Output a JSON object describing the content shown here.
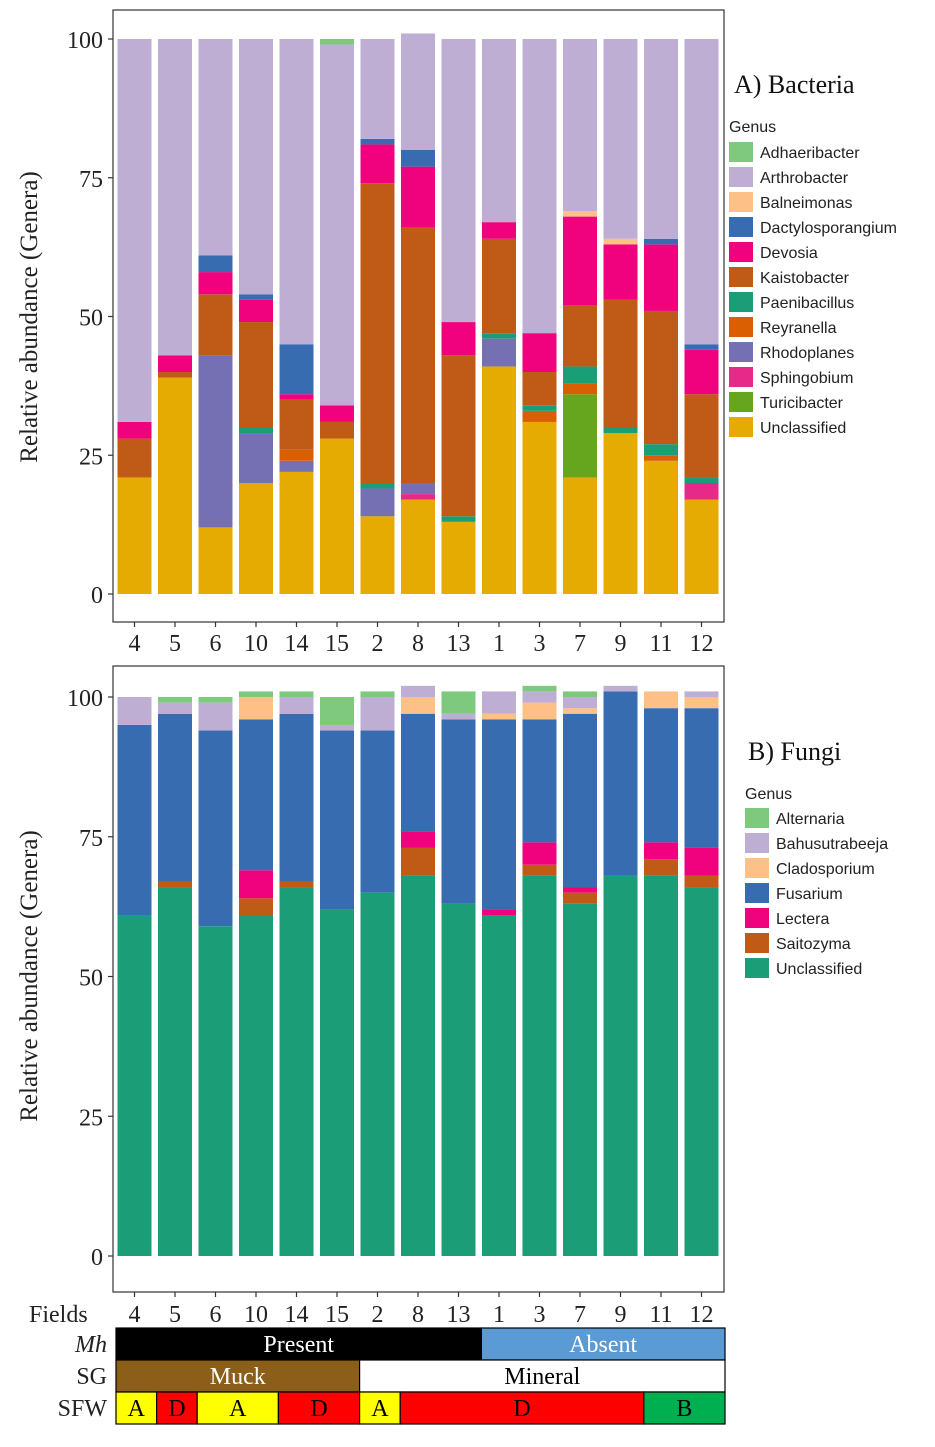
{
  "chart_data": [
    {
      "id": "bacteria",
      "type": "bar",
      "stacked": true,
      "title": "A) Bacteria",
      "xlabel": "",
      "ylabel": "Relative abundance (Genera)",
      "ylim": [
        0,
        100
      ],
      "yticks": [
        0,
        25,
        50,
        75,
        100
      ],
      "grid": false,
      "legend_title": "Genus",
      "legend_position": "right",
      "categories": [
        "4",
        "5",
        "6",
        "10",
        "14",
        "15",
        "2",
        "8",
        "13",
        "1",
        "3",
        "7",
        "9",
        "11",
        "12"
      ],
      "series": [
        {
          "name": "Unclassified",
          "color": "#E6AB02",
          "values": [
            21,
            39,
            12,
            20,
            22,
            28,
            14,
            17,
            13,
            41,
            31,
            21,
            29,
            24,
            17
          ]
        },
        {
          "name": "Turicibacter",
          "color": "#66A61E",
          "values": [
            0,
            0,
            0,
            0,
            0,
            0,
            0,
            0,
            0,
            0,
            0,
            15,
            0,
            0,
            0
          ]
        },
        {
          "name": "Sphingobium",
          "color": "#E7298A",
          "values": [
            0,
            0,
            0,
            0,
            0,
            0,
            0,
            1,
            0,
            0,
            0,
            0,
            0,
            0,
            3
          ]
        },
        {
          "name": "Rhodoplanes",
          "color": "#7570B3",
          "values": [
            0,
            0,
            31,
            9,
            2,
            0,
            5,
            2,
            0,
            5,
            0,
            0,
            0,
            0,
            0
          ]
        },
        {
          "name": "Reyranella",
          "color": "#D95F02",
          "values": [
            0,
            0,
            0,
            0,
            2,
            0,
            0,
            0,
            0,
            0,
            2,
            2,
            0,
            1,
            0
          ]
        },
        {
          "name": "Paenibacillus",
          "color": "#1B9E77",
          "values": [
            0,
            0,
            0,
            1,
            0,
            0,
            1,
            0,
            1,
            1,
            1,
            3,
            1,
            2,
            1
          ]
        },
        {
          "name": "Kaistobacter",
          "color": "#BF5B17",
          "values": [
            7,
            1,
            11,
            19,
            9,
            3,
            54,
            46,
            29,
            17,
            6,
            11,
            23,
            24,
            15
          ]
        },
        {
          "name": "Devosia",
          "color": "#F0027F",
          "values": [
            3,
            3,
            4,
            4,
            1,
            3,
            7,
            11,
            6,
            3,
            7,
            16,
            10,
            12,
            8
          ]
        },
        {
          "name": "Dactylosporangium",
          "color": "#386CB0",
          "values": [
            0,
            0,
            3,
            1,
            9,
            0,
            1,
            3,
            0,
            0,
            0,
            0,
            0,
            1,
            1
          ]
        },
        {
          "name": "Balneimonas",
          "color": "#FDC086",
          "values": [
            0,
            0,
            0,
            0,
            0,
            0,
            0,
            0,
            0,
            0,
            0,
            1,
            1,
            0,
            0
          ]
        },
        {
          "name": "Arthrobacter",
          "color": "#BEAED4",
          "values": [
            69,
            57,
            39,
            46,
            55,
            65,
            18,
            21,
            51,
            33,
            53,
            31,
            36,
            36,
            55
          ]
        },
        {
          "name": "Adhaeribacter",
          "color": "#7FC97F",
          "values": [
            0,
            0,
            0,
            0,
            0,
            1,
            0,
            0,
            0,
            0,
            0,
            0,
            0,
            0,
            0
          ]
        }
      ]
    },
    {
      "id": "fungi",
      "type": "bar",
      "stacked": true,
      "title": "B) Fungi",
      "xlabel": "",
      "ylabel": "Relative abundance (Genera)",
      "ylim": [
        0,
        100
      ],
      "yticks": [
        0,
        25,
        50,
        75,
        100
      ],
      "grid": false,
      "legend_title": "Genus",
      "legend_position": "right",
      "categories": [
        "4",
        "5",
        "6",
        "10",
        "14",
        "15",
        "2",
        "8",
        "13",
        "1",
        "3",
        "7",
        "9",
        "11",
        "12"
      ],
      "series": [
        {
          "name": "Unclassified",
          "color": "#1B9E77",
          "values": [
            61,
            66,
            59,
            61,
            66,
            62,
            65,
            68,
            63,
            61,
            68,
            63,
            68,
            68,
            66
          ]
        },
        {
          "name": "Saitozyma",
          "color": "#BF5B17",
          "values": [
            0,
            1,
            0,
            3,
            1,
            0,
            0,
            5,
            0,
            0,
            2,
            2,
            0,
            3,
            2
          ]
        },
        {
          "name": "Lectera",
          "color": "#F0027F",
          "values": [
            0,
            0,
            0,
            5,
            0,
            0,
            0,
            3,
            0,
            1,
            4,
            1,
            0,
            3,
            5
          ]
        },
        {
          "name": "Fusarium",
          "color": "#386CB0",
          "values": [
            34,
            30,
            35,
            27,
            30,
            32,
            29,
            21,
            33,
            34,
            22,
            31,
            33,
            24,
            25
          ]
        },
        {
          "name": "Cladosporium",
          "color": "#FDC086",
          "values": [
            0,
            0,
            0,
            4,
            0,
            0,
            0,
            3,
            0,
            1,
            3,
            1,
            0,
            3,
            2
          ]
        },
        {
          "name": "Bahusutrabeeja",
          "color": "#BEAED4",
          "values": [
            5,
            2,
            5,
            0,
            3,
            1,
            6,
            2,
            1,
            4,
            2,
            2,
            1,
            0,
            1
          ]
        },
        {
          "name": "Alternaria",
          "color": "#7FC97F",
          "values": [
            0,
            1,
            1,
            1,
            1,
            5,
            1,
            0,
            4,
            0,
            1,
            1,
            0,
            0,
            0
          ]
        }
      ]
    }
  ],
  "annotation_rows": {
    "fields_label": "Fields",
    "fields": [
      "4",
      "5",
      "6",
      "10",
      "14",
      "15",
      "2",
      "8",
      "13",
      "1",
      "3",
      "7",
      "9",
      "11",
      "12"
    ],
    "rows": [
      {
        "label": "Mh",
        "italic": true,
        "segments": [
          {
            "text": "Present",
            "span": 9,
            "fill": "#000000",
            "text_color": "#ffffff"
          },
          {
            "text": "Absent",
            "span": 6,
            "fill": "#5B9BD5",
            "text_color": "#ffffff"
          }
        ]
      },
      {
        "label": "SG",
        "italic": false,
        "segments": [
          {
            "text": "Muck",
            "span": 6,
            "fill": "#8B5E1A",
            "text_color": "#ffffff"
          },
          {
            "text": "Mineral",
            "span": 9,
            "fill": "#ffffff",
            "text_color": "#000000"
          }
        ]
      },
      {
        "label": "SFW",
        "italic": false,
        "segments": [
          {
            "text": "A",
            "span": 1,
            "fill": "#FFFF00",
            "text_color": "#000000"
          },
          {
            "text": "D",
            "span": 1,
            "fill": "#FF0000",
            "text_color": "#000000"
          },
          {
            "text": "A",
            "span": 2,
            "fill": "#FFFF00",
            "text_color": "#000000"
          },
          {
            "text": "D",
            "span": 2,
            "fill": "#FF0000",
            "text_color": "#000000"
          },
          {
            "text": "A",
            "span": 1,
            "fill": "#FFFF00",
            "text_color": "#000000"
          },
          {
            "text": "D",
            "span": 6,
            "fill": "#FF0000",
            "text_color": "#000000"
          },
          {
            "text": "B",
            "span": 2,
            "fill": "#00B050",
            "text_color": "#000000"
          }
        ]
      }
    ]
  }
}
